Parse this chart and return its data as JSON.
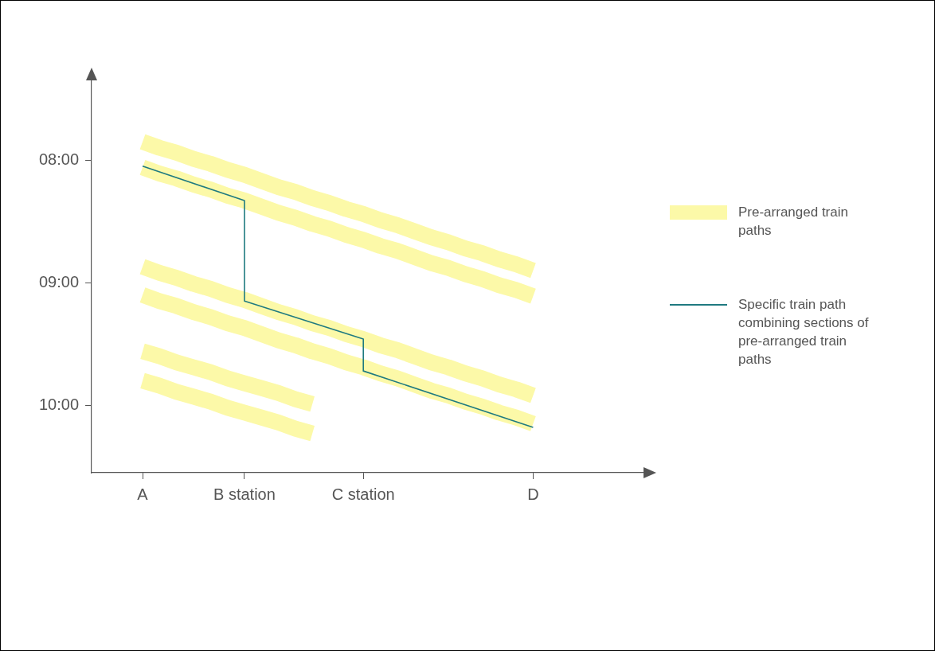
{
  "chart_data": {
    "type": "line",
    "ylim": [
      10.55,
      7.35
    ],
    "categories": [
      "A",
      null,
      null,
      null,
      null,
      null,
      "B station",
      null,
      null,
      null,
      null,
      null,
      null,
      "C station",
      null,
      null,
      null,
      null,
      null,
      null,
      null,
      null,
      null,
      "D"
    ],
    "yticks": [
      {
        "value": 8,
        "label": "08:00"
      },
      {
        "value": 9,
        "label": "09:00"
      },
      {
        "value": 10,
        "label": "10:00"
      }
    ],
    "grid": false,
    "legend": "right",
    "marker": "none",
    "line_style": "solid",
    "series": [
      {
        "name": "Pre-arranged train paths",
        "color": "#fcf9a8",
        "values": [
          7.85,
          7.9,
          7.94,
          7.99,
          8.03,
          8.08,
          8.12,
          8.17,
          8.22,
          8.26,
          8.31,
          8.35,
          8.4,
          8.44,
          8.49,
          8.53,
          8.58,
          8.63,
          8.67,
          8.72,
          8.76,
          8.81,
          8.85,
          8.9
        ]
      },
      {
        "color": "#fcf9a8",
        "values": [
          8.06,
          8.11,
          8.15,
          8.2,
          8.24,
          8.29,
          8.33,
          8.38,
          8.43,
          8.47,
          8.52,
          8.56,
          8.61,
          8.65,
          8.7,
          8.74,
          8.79,
          8.84,
          8.88,
          8.93,
          8.97,
          9.02,
          9.06,
          9.11
        ]
      },
      {
        "color": "#fcf9a8",
        "values": [
          8.87,
          8.92,
          8.96,
          9.01,
          9.05,
          9.1,
          9.14,
          9.19,
          9.24,
          9.28,
          9.33,
          9.37,
          9.42,
          9.46,
          9.51,
          9.55,
          9.6,
          9.65,
          9.69,
          9.74,
          9.78,
          9.83,
          9.87,
          9.92
        ]
      },
      {
        "color": "#fcf9a8",
        "values": [
          9.1,
          9.15,
          9.19,
          9.24,
          9.28,
          9.33,
          9.37,
          9.42,
          9.47,
          9.51,
          9.56,
          9.6,
          9.65,
          9.69,
          9.74,
          9.78,
          9.83,
          9.88,
          9.92,
          9.97,
          10.01,
          10.06,
          10.1,
          10.15
        ]
      },
      {
        "color": "#fcf9a8",
        "values": [
          9.56,
          9.6,
          9.65,
          9.69,
          9.73,
          9.78,
          9.82,
          9.86,
          9.9,
          9.95,
          9.99,
          null,
          null,
          null,
          null,
          null,
          null,
          null,
          null,
          null,
          null,
          null,
          null,
          null
        ]
      },
      {
        "color": "#fcf9a8",
        "values": [
          9.8,
          9.84,
          9.89,
          9.93,
          9.97,
          10.02,
          10.06,
          10.1,
          10.14,
          10.19,
          10.23,
          null,
          null,
          null,
          null,
          null,
          null,
          null,
          null,
          null,
          null,
          null,
          null,
          null
        ]
      },
      {
        "name": "Specific train path combining sections of pre-arranged train paths",
        "color": "#1f7a80",
        "x": [
          "A",
          "B station",
          "B station",
          "C station",
          "C station",
          "D"
        ],
        "values": [
          8.05,
          8.33,
          9.15,
          9.46,
          9.72,
          10.18
        ]
      }
    ]
  }
}
